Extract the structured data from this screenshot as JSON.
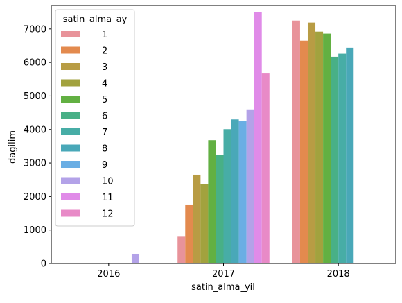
{
  "chart_data": {
    "type": "bar",
    "xlabel": "satin_alma_yil",
    "ylabel": "dagilim",
    "categories": [
      "2016",
      "2017",
      "2018"
    ],
    "ylim": [
      0,
      7700
    ],
    "yticks": [
      0,
      1000,
      2000,
      3000,
      4000,
      5000,
      6000,
      7000
    ],
    "legend": {
      "title": "satin_alma_ay",
      "placement": "upper-left"
    },
    "series": [
      {
        "name": "1",
        "color": "#e8939a",
        "values": [
          0,
          800,
          7250
        ]
      },
      {
        "name": "2",
        "color": "#e38a4e",
        "values": [
          0,
          1760,
          6650
        ]
      },
      {
        "name": "3",
        "color": "#b89c44",
        "values": [
          0,
          2650,
          7190
        ]
      },
      {
        "name": "4",
        "color": "#a2a23e",
        "values": [
          0,
          2380,
          6920
        ]
      },
      {
        "name": "5",
        "color": "#62b042",
        "values": [
          0,
          3680,
          6860
        ]
      },
      {
        "name": "6",
        "color": "#48b086",
        "values": [
          0,
          3230,
          6170
        ]
      },
      {
        "name": "7",
        "color": "#47ada6",
        "values": [
          0,
          4010,
          6260
        ]
      },
      {
        "name": "8",
        "color": "#49a8b8",
        "values": [
          0,
          4300,
          6440
        ]
      },
      {
        "name": "9",
        "color": "#6aaee4",
        "values": [
          0,
          4260,
          0
        ]
      },
      {
        "name": "10",
        "color": "#b3a2e8",
        "values": [
          290,
          4600,
          0
        ]
      },
      {
        "name": "11",
        "color": "#e08be8",
        "values": [
          0,
          7510,
          0
        ]
      },
      {
        "name": "12",
        "color": "#e88ac7",
        "values": [
          0,
          5670,
          0
        ]
      }
    ]
  }
}
